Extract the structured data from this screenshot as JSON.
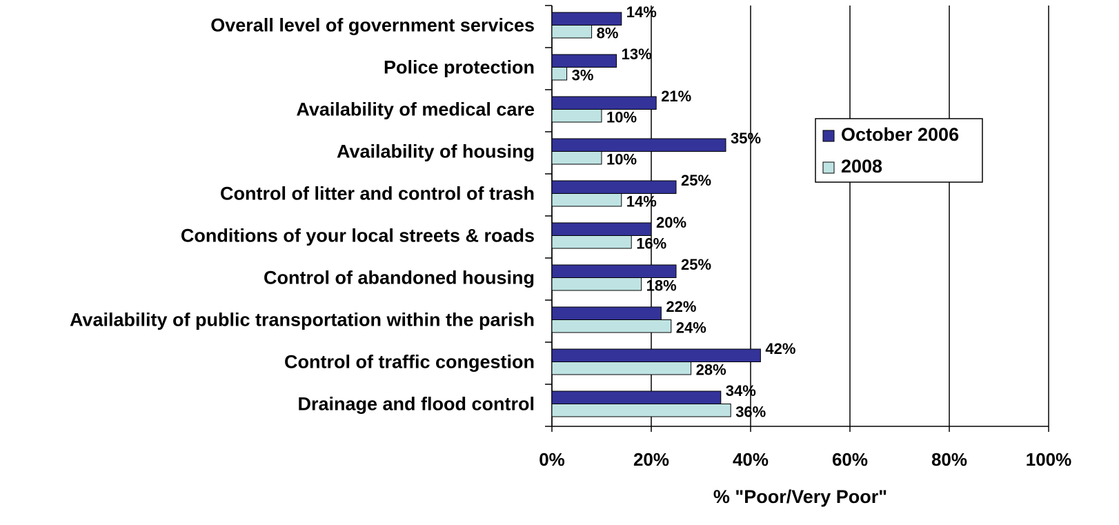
{
  "chart_data": {
    "type": "hbar",
    "x_label": "% \"Poor/Very Poor\"",
    "categories": [
      "Overall level of government services",
      "Police protection",
      "Availability of medical care",
      "Availability of housing",
      "Control of litter and control of trash",
      "Conditions of your local streets & roads",
      "Control of abandoned housing",
      "Availability of public transportation within the parish",
      "Control of traffic congestion",
      "Drainage and flood control"
    ],
    "series": [
      {
        "name": "October 2006",
        "color": "#333399",
        "values": [
          14,
          13,
          21,
          35,
          25,
          20,
          25,
          22,
          42,
          34
        ],
        "value_labels": [
          "14%",
          "13%",
          "21%",
          "35%",
          "25%",
          "20%",
          "25%",
          "22%",
          "42%",
          "34%"
        ]
      },
      {
        "name": "2008",
        "color": "#bfe3e3",
        "values": [
          8,
          3,
          10,
          10,
          14,
          16,
          18,
          24,
          28,
          36
        ],
        "value_labels": [
          "8%",
          "3%",
          "10%",
          "10%",
          "14%",
          "16%",
          "18%",
          "24%",
          "28%",
          "36%"
        ]
      }
    ],
    "xlim": [
      0,
      100
    ],
    "xticks": [
      {
        "value": 0,
        "label": "0%"
      },
      {
        "value": 20,
        "label": "20%"
      },
      {
        "value": 40,
        "label": "40%"
      },
      {
        "value": 60,
        "label": "60%"
      },
      {
        "value": 80,
        "label": "80%"
      },
      {
        "value": 100,
        "label": "100%"
      }
    ],
    "grid": true,
    "legend": "right"
  }
}
